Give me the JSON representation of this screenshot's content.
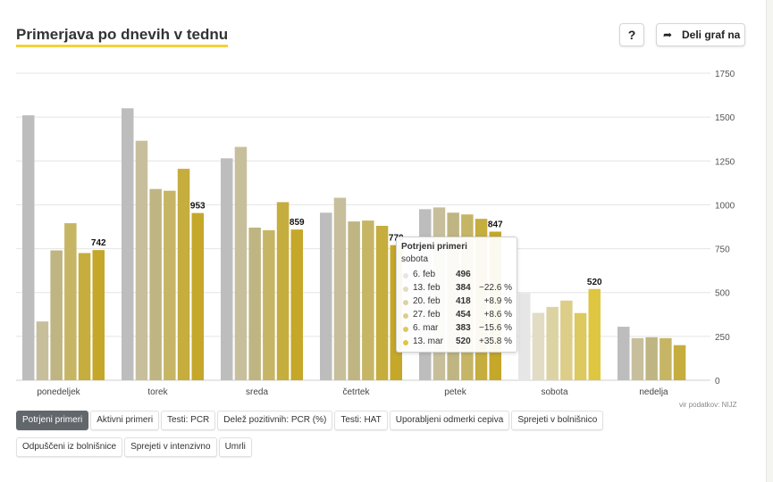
{
  "header": {
    "title": "Primerjava po dnevih v tednu",
    "help_label": "?",
    "share_label": "Deli graf na",
    "share_icon": "share-arrow-icon"
  },
  "source": "vir podatkov: NIJZ",
  "tabs": [
    {
      "label": "Potrjeni primeri",
      "active": true
    },
    {
      "label": "Aktivni primeri",
      "active": false
    },
    {
      "label": "Testi: PCR",
      "active": false
    },
    {
      "label": "Delež pozitivnih: PCR (%)",
      "active": false
    },
    {
      "label": "Testi: HAT",
      "active": false
    },
    {
      "label": "Uporabljeni odmerki cepiva",
      "active": false
    },
    {
      "label": "Sprejeti v bolnišnico",
      "active": false
    },
    {
      "label": "Odpuščeni iz bolnišnice",
      "active": false
    },
    {
      "label": "Sprejeti v intenzivno",
      "active": false
    },
    {
      "label": "Umrli",
      "active": false
    }
  ],
  "tooltip": {
    "title": "Potrjeni primeri",
    "subtitle": "sobota",
    "rows": [
      {
        "date": "6. feb",
        "value": "496",
        "change": ""
      },
      {
        "date": "13. feb",
        "value": "384",
        "change": "−22.6 %"
      },
      {
        "date": "20. feb",
        "value": "418",
        "change": "+8.9 %"
      },
      {
        "date": "27. feb",
        "value": "454",
        "change": "+8.6 %"
      },
      {
        "date": "6. mar",
        "value": "383",
        "change": "−15.6 %"
      },
      {
        "date": "13. mar",
        "value": "520",
        "change": "+35.8 %"
      }
    ]
  },
  "chart_data": {
    "type": "bar",
    "categories": [
      "ponedeljek",
      "torek",
      "sreda",
      "četrtek",
      "petek",
      "sobota",
      "nedelja"
    ],
    "series": [
      {
        "name": "6. feb",
        "values": [
          1510,
          1550,
          1265,
          955,
          975,
          496,
          305
        ]
      },
      {
        "name": "13. feb",
        "values": [
          335,
          1365,
          1330,
          1040,
          985,
          384,
          240
        ]
      },
      {
        "name": "20. feb",
        "values": [
          740,
          1090,
          870,
          905,
          955,
          418,
          245
        ]
      },
      {
        "name": "27. feb",
        "values": [
          895,
          1080,
          855,
          910,
          945,
          454,
          240
        ]
      },
      {
        "name": "6. mar",
        "values": [
          725,
          1205,
          1015,
          880,
          920,
          383,
          200
        ]
      },
      {
        "name": "13. mar",
        "values": [
          742,
          953,
          859,
          770,
          847,
          520,
          null
        ]
      }
    ],
    "value_labels": [
      "742",
      "953",
      "859",
      "770",
      "847",
      "520"
    ],
    "y_ticks": [
      "0",
      "250",
      "500",
      "750",
      "1000",
      "1250",
      "1500",
      "1750"
    ],
    "ylim": [
      0,
      1750
    ],
    "grid": true,
    "colors": {
      "normal": [
        "#bdbdbd",
        "#c7bf9c",
        "#bfb582",
        "#c6b565",
        "#c5ad3e",
        "#c5a72a"
      ],
      "highlight": [
        "#e6e6e6",
        "#e1dcc3",
        "#dcd3a4",
        "#dccd89",
        "#dcc95f",
        "#dfc640"
      ]
    },
    "highlighted_category": "sobota"
  }
}
